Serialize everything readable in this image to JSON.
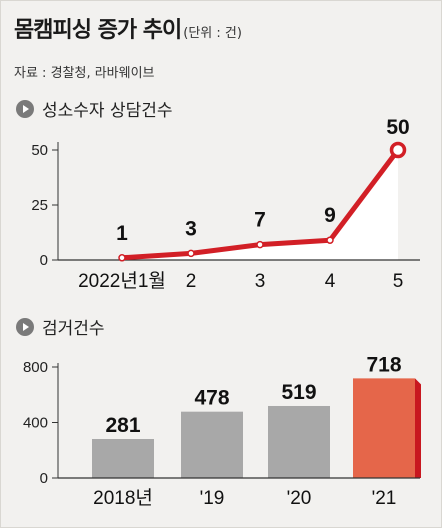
{
  "header": {
    "title": "몸캠피싱 증가 추이",
    "unit": "(단위 : 건)",
    "source": "자료 : 경찰청, 라바웨이브"
  },
  "colors": {
    "background": "#f2f1ef",
    "line": "#d21f26",
    "bar_gray": "#a8a8a8",
    "bar_highlight": "#e5664a",
    "bar_highlight_side": "#c8171f",
    "area_fill": "#ffffff"
  },
  "chart_data": [
    {
      "type": "line",
      "title": "성소수자 상담건수",
      "x": [
        "2022년1월",
        "2",
        "3",
        "4",
        "5"
      ],
      "values": [
        1,
        3,
        7,
        9,
        50
      ],
      "ylim": [
        0,
        50
      ],
      "yticks": [
        0,
        25,
        50
      ],
      "grid": false
    },
    {
      "type": "bar",
      "title": "검거건수",
      "categories": [
        "2018년",
        "'19",
        "'20",
        "'21"
      ],
      "values": [
        281,
        478,
        519,
        718
      ],
      "ylim": [
        0,
        800
      ],
      "yticks": [
        0,
        400,
        800
      ],
      "grid": false
    }
  ]
}
